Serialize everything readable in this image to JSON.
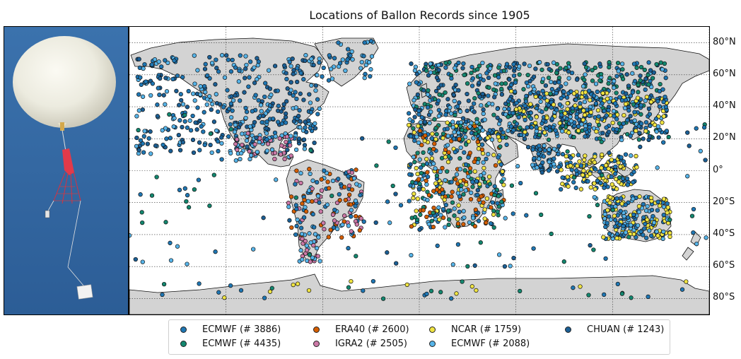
{
  "title": "Locations of Ballon Records since 1905",
  "lat_labels": [
    "80°N",
    "60°N",
    "40°N",
    "20°N",
    "0°",
    "20°S",
    "40°S",
    "60°S",
    "80°S"
  ],
  "colors": {
    "ocean": "#ffffff",
    "land": "#d3d3d3",
    "sky_top": "#3a6ea7",
    "sky_bottom": "#2f5f98",
    "grid": "#333333"
  },
  "legend": [
    {
      "label": "ECMWF (# 3886)",
      "color": "#1f77b4"
    },
    {
      "label": "ECMWF (# 4435)",
      "color": "#13876f"
    },
    {
      "label": "ERA40 (# 2600)",
      "color": "#d55e00"
    },
    {
      "label": "IGRA2 (# 2505)",
      "color": "#cc79a7"
    },
    {
      "label": "NCAR (# 1759)",
      "color": "#f0e442"
    },
    {
      "label": "ECMWF (# 2088)",
      "color": "#56b4e9"
    },
    {
      "label": "CHUAN (# 1243)",
      "color": "#1b5f95"
    }
  ]
}
